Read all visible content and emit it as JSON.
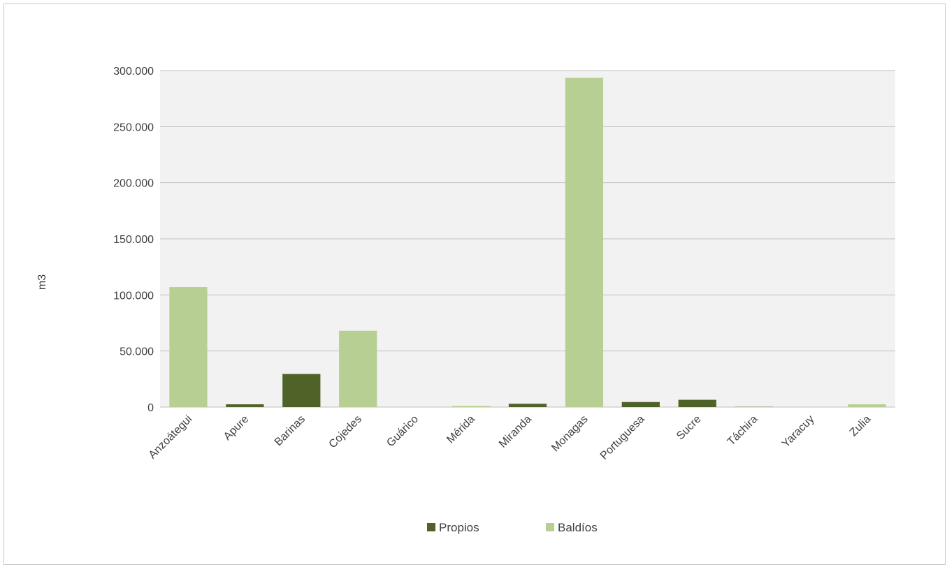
{
  "chart_data": {
    "type": "bar",
    "ylabel": "m3",
    "ylim": [
      0,
      300000
    ],
    "yticks": [
      0,
      50000,
      100000,
      150000,
      200000,
      250000,
      300000
    ],
    "ytick_labels": [
      "0",
      "50.000",
      "100.000",
      "150.000",
      "200.000",
      "250.000",
      "300.000"
    ],
    "grid": true,
    "legend_position": "bottom",
    "categories": [
      "Anzoátegui",
      "Apure",
      "Barinas",
      "Cojedes",
      "Guárico",
      "Mérida",
      "Miranda",
      "Monagas",
      "Portuguesa",
      "Sucre",
      "Táchira",
      "Yaracuy",
      "Zulia"
    ],
    "series": [
      {
        "name": "Propios",
        "color": "#4f6228",
        "values": [
          0,
          2500,
          29500,
          0,
          0,
          500,
          3000,
          0,
          4500,
          6500,
          200,
          0,
          0
        ]
      },
      {
        "name": "Baldíos",
        "color": "#b8cf93",
        "values": [
          107000,
          0,
          0,
          68000,
          0,
          1000,
          0,
          293500,
          0,
          0,
          0,
          0,
          2500
        ]
      }
    ]
  }
}
